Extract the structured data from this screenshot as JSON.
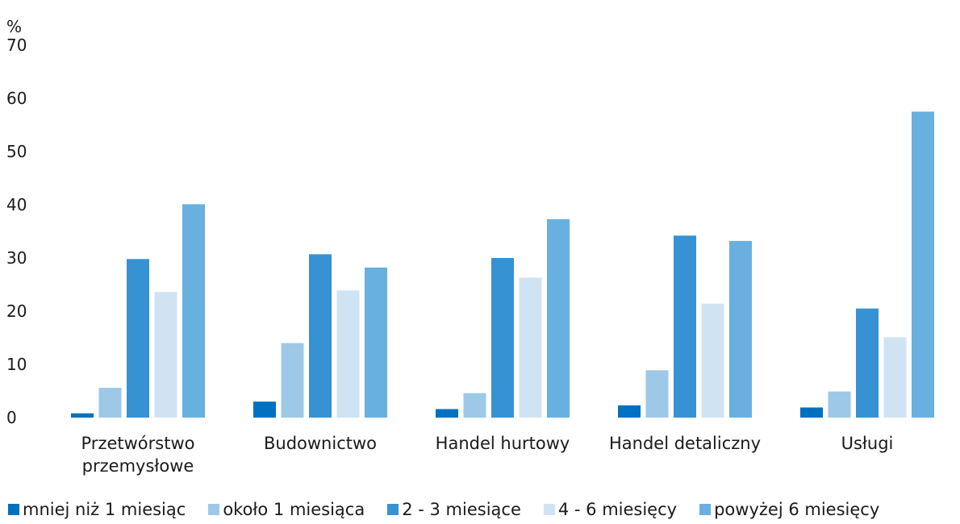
{
  "chart_data": {
    "type": "bar",
    "ylabel": "%",
    "ylim": [
      0,
      70
    ],
    "yticks": [
      0,
      10,
      20,
      30,
      40,
      50,
      60,
      70
    ],
    "categories": [
      "Przetwórstwo przemysłowe",
      "Budownictwo",
      "Handel hurtowy",
      "Handel detaliczny",
      "Usługi"
    ],
    "category_lines": [
      [
        "Przetwórstwo",
        "przemysłowe"
      ],
      [
        "Budownictwo"
      ],
      [
        "Handel hurtowy"
      ],
      [
        "Handel detaliczny"
      ],
      [
        "Usługi"
      ]
    ],
    "series": [
      {
        "name": "mniej niż 1 miesiąc",
        "color": "#0070c0",
        "values": [
          0.8,
          3.0,
          1.6,
          2.3,
          1.9
        ]
      },
      {
        "name": "około 1 miesiąca",
        "color": "#9dc8e8",
        "values": [
          5.6,
          14.0,
          4.6,
          8.9,
          4.9
        ]
      },
      {
        "name": "2 - 3 miesiące",
        "color": "#3792d4",
        "values": [
          29.8,
          30.7,
          30.0,
          34.2,
          20.5
        ]
      },
      {
        "name": "4 - 6 miesięcy",
        "color": "#d0e3f3",
        "values": [
          23.6,
          23.9,
          26.3,
          21.4,
          15.1
        ]
      },
      {
        "name": "powyżej 6 miesięcy",
        "color": "#67b0e0",
        "values": [
          40.1,
          28.2,
          37.3,
          33.2,
          57.5
        ]
      }
    ],
    "grid": false,
    "legend_position": "bottom"
  }
}
